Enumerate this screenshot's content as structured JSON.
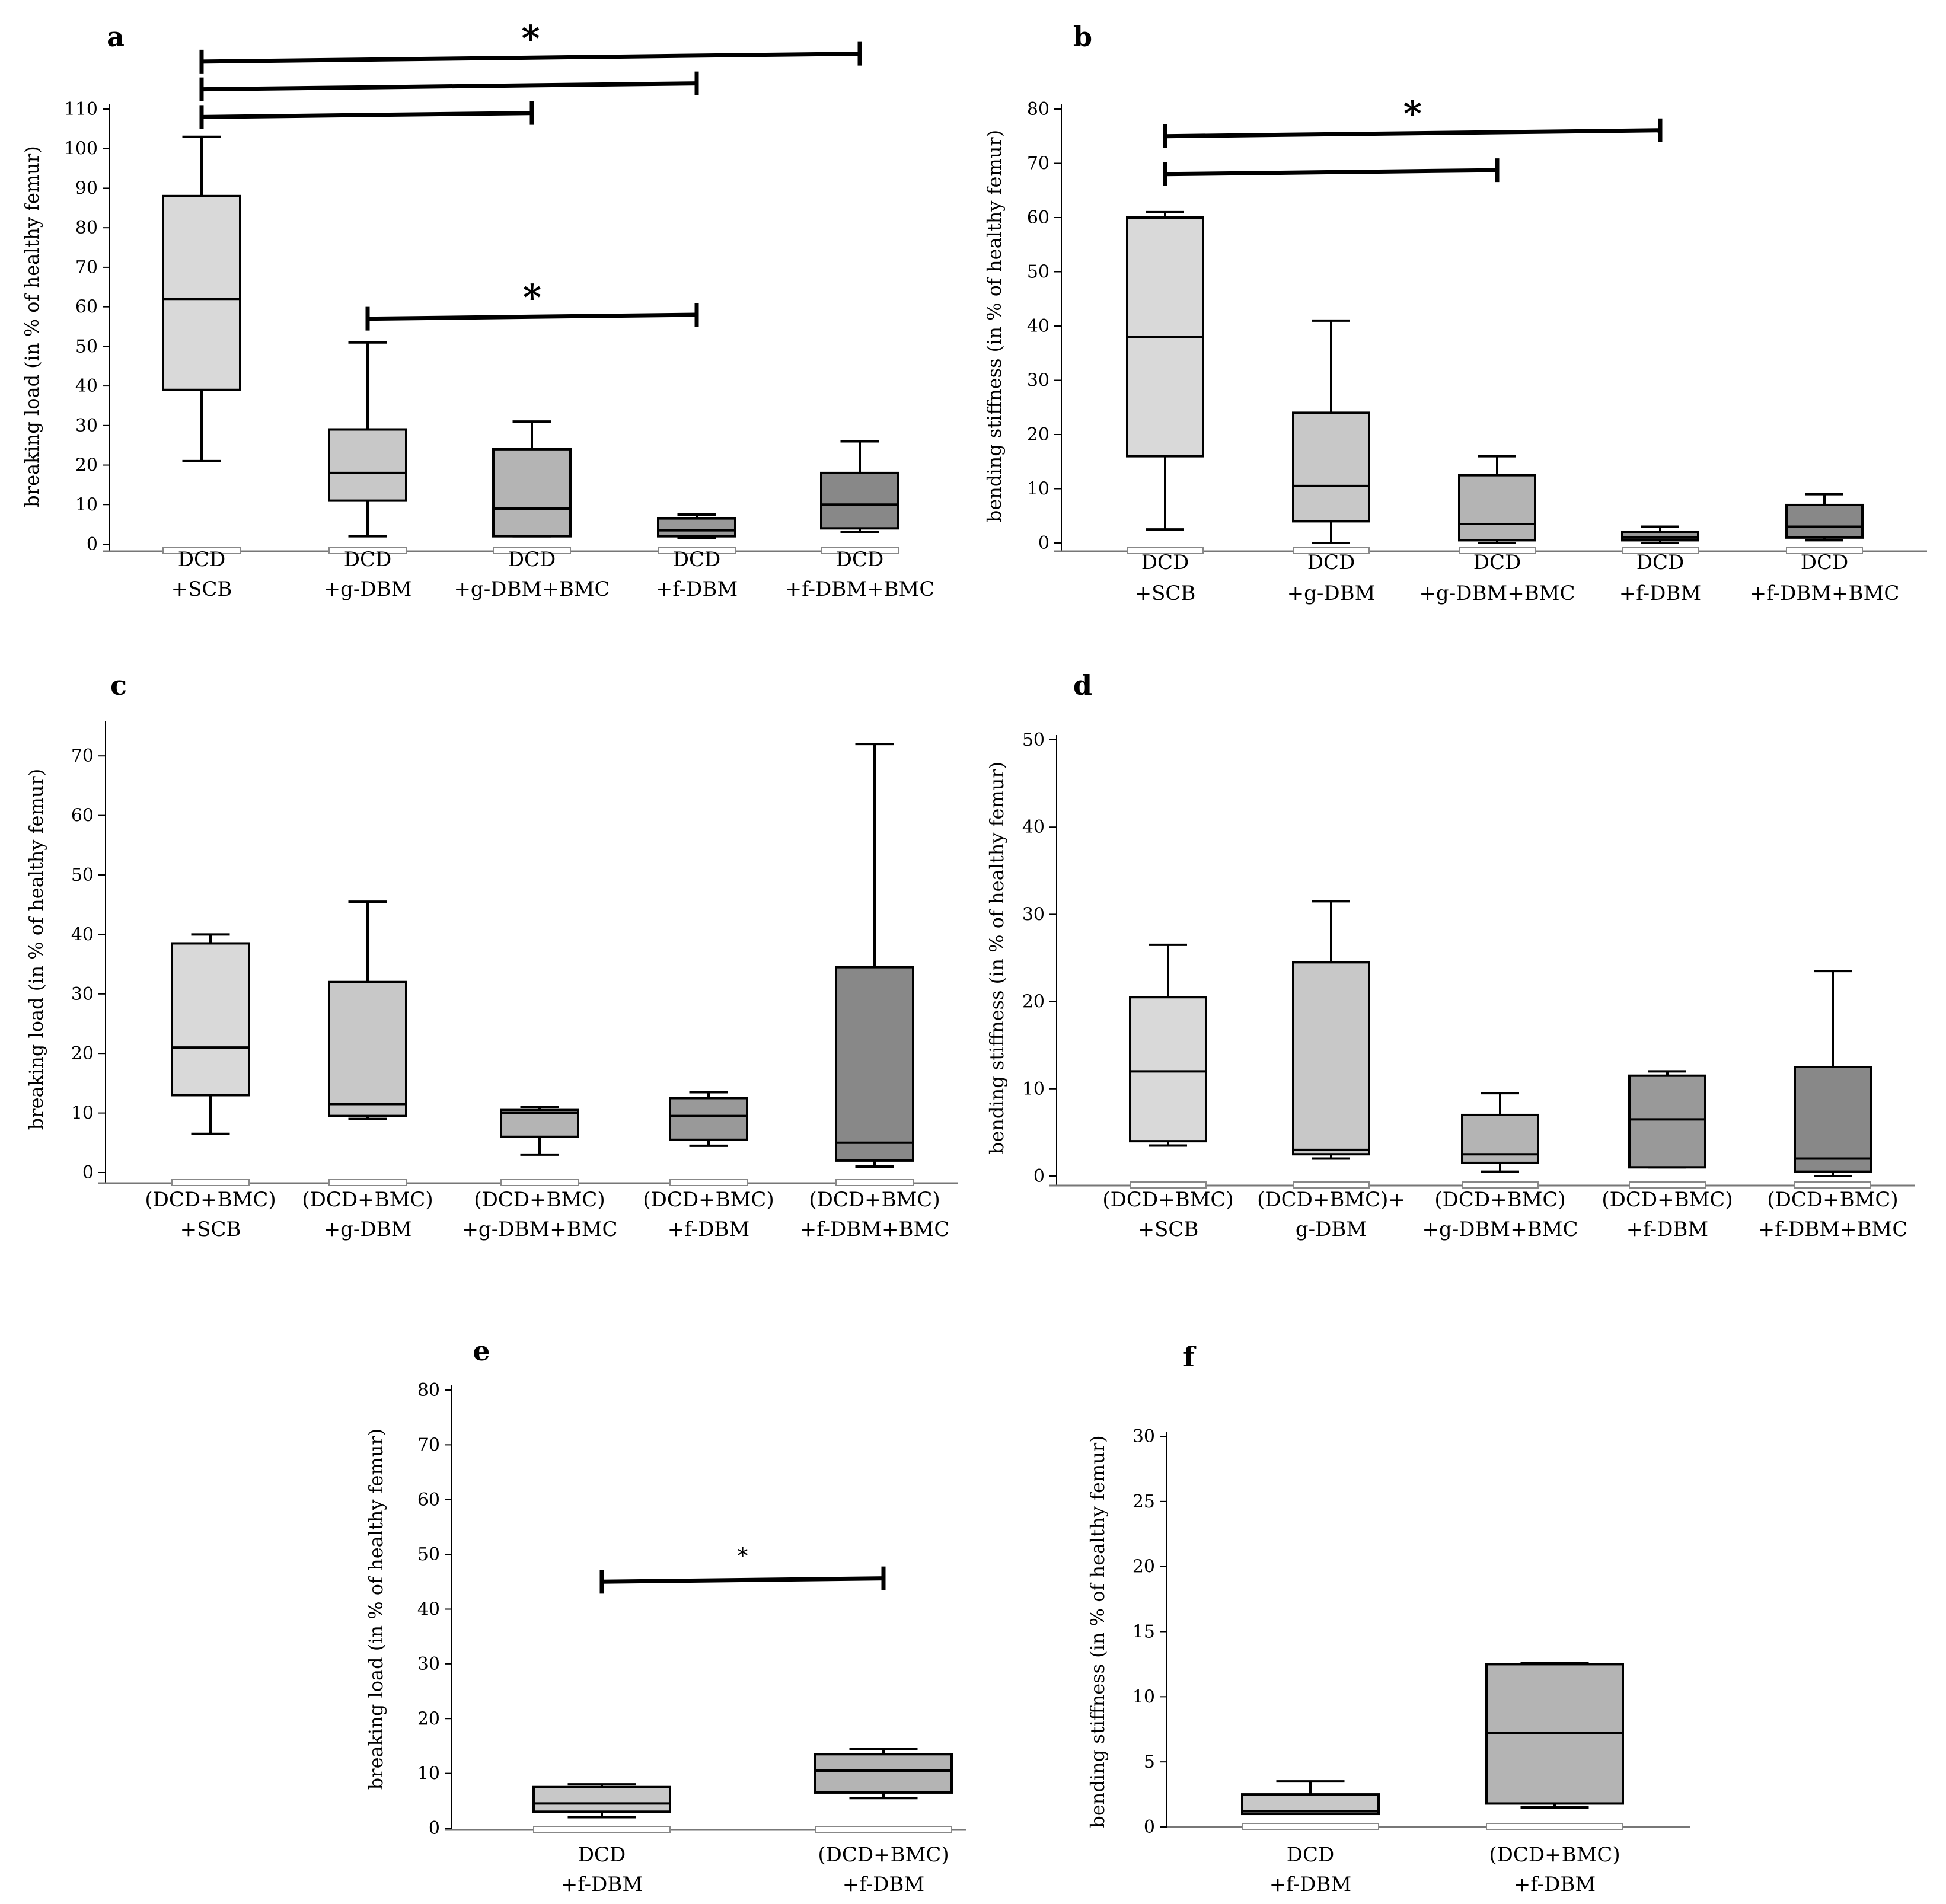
{
  "chart_data": [
    {
      "panel": "a",
      "type": "box",
      "ylabel": "breaking load (in % of healthy femur)",
      "ylim": [
        0,
        110
      ],
      "yticks": [
        0,
        10,
        20,
        30,
        40,
        50,
        60,
        70,
        80,
        90,
        100,
        110
      ],
      "categories": [
        [
          "DCD",
          "+SCB"
        ],
        [
          "DCD",
          "+g-DBM"
        ],
        [
          "DCD",
          "+g-DBM+BMC"
        ],
        [
          "DCD",
          "+f-DBM"
        ],
        [
          "DCD",
          "+f-DBM+BMC"
        ]
      ],
      "boxes": [
        {
          "min": 21,
          "q1": 39,
          "median": 62,
          "q3": 88,
          "max": 103,
          "color": "#d9d9d9"
        },
        {
          "min": 2,
          "q1": 11,
          "median": 18,
          "q3": 29,
          "max": 51,
          "color": "#c8c8c8"
        },
        {
          "min": 2,
          "q1": 2,
          "median": 9,
          "q3": 24,
          "max": 31,
          "color": "#b4b4b4"
        },
        {
          "min": 1.5,
          "q1": 2,
          "median": 3.5,
          "q3": 6.5,
          "max": 7.5,
          "color": "#999999"
        },
        {
          "min": 3,
          "q1": 4,
          "median": 10,
          "q3": 18,
          "max": 26,
          "color": "#888888"
        }
      ],
      "significance": [
        {
          "from": 0,
          "to": 4,
          "y": 122,
          "label": "*"
        },
        {
          "from": 0,
          "to": 3,
          "y": 115,
          "label": ""
        },
        {
          "from": 0,
          "to": 2,
          "y": 108,
          "label": ""
        },
        {
          "from": 1,
          "to": 3,
          "y": 57,
          "label": "*"
        }
      ]
    },
    {
      "panel": "b",
      "type": "box",
      "ylabel": "bending stiffness (in % of healthy femur)",
      "ylim": [
        0,
        80
      ],
      "yticks": [
        0,
        10,
        20,
        30,
        40,
        50,
        60,
        70,
        80
      ],
      "categories": [
        [
          "DCD",
          "+SCB"
        ],
        [
          "DCD",
          "+g-DBM"
        ],
        [
          "DCD",
          "+g-DBM+BMC"
        ],
        [
          "DCD",
          "+f-DBM"
        ],
        [
          "DCD",
          "+f-DBM+BMC"
        ]
      ],
      "boxes": [
        {
          "min": 2.5,
          "q1": 16,
          "median": 38,
          "q3": 60,
          "max": 61,
          "color": "#d9d9d9"
        },
        {
          "min": 0,
          "q1": 4,
          "median": 10.5,
          "q3": 24,
          "max": 41,
          "color": "#c8c8c8"
        },
        {
          "min": 0,
          "q1": 0.5,
          "median": 3.5,
          "q3": 12.5,
          "max": 16,
          "color": "#b4b4b4"
        },
        {
          "min": 0,
          "q1": 0.5,
          "median": 1,
          "q3": 2,
          "max": 3,
          "color": "#999999"
        },
        {
          "min": 0.5,
          "q1": 1,
          "median": 3,
          "q3": 7,
          "max": 9,
          "color": "#888888"
        }
      ],
      "significance": [
        {
          "from": 0,
          "to": 3,
          "y": 75,
          "label": "*"
        },
        {
          "from": 0,
          "to": 2,
          "y": 68,
          "label": ""
        }
      ]
    },
    {
      "panel": "c",
      "type": "box",
      "ylabel": "breaking load (in % of healthy femur)",
      "ylim": [
        0,
        75
      ],
      "yticks": [
        0,
        10,
        20,
        30,
        40,
        50,
        60,
        70
      ],
      "categories": [
        [
          "(DCD+BMC)",
          "+SCB"
        ],
        [
          "(DCD+BMC)",
          "+g-DBM"
        ],
        [
          "(DCD+BMC)",
          "+g-DBM+BMC"
        ],
        [
          "(DCD+BMC)",
          "+f-DBM"
        ],
        [
          "(DCD+BMC)",
          "+f-DBM+BMC"
        ]
      ],
      "boxes": [
        {
          "min": 6.5,
          "q1": 13,
          "median": 21,
          "q3": 38.5,
          "max": 40,
          "color": "#d9d9d9"
        },
        {
          "min": 9,
          "q1": 9.5,
          "median": 11.5,
          "q3": 32,
          "max": 45.5,
          "color": "#c8c8c8"
        },
        {
          "min": 3,
          "q1": 6,
          "median": 10,
          "q3": 10.5,
          "max": 11,
          "color": "#b4b4b4"
        },
        {
          "min": 4.5,
          "q1": 5.5,
          "median": 9.5,
          "q3": 12.5,
          "max": 13.5,
          "color": "#999999"
        },
        {
          "min": 1,
          "q1": 2,
          "median": 5,
          "q3": 34.5,
          "max": 72,
          "color": "#888888"
        }
      ],
      "significance": []
    },
    {
      "panel": "d",
      "type": "box",
      "ylabel": "bending stiffness (in % of healthy femur)",
      "ylim": [
        0,
        50
      ],
      "yticks": [
        0,
        10,
        20,
        30,
        40,
        50
      ],
      "categories": [
        [
          "(DCD+BMC)",
          "+SCB"
        ],
        [
          "(DCD+BMC)+",
          "g-DBM"
        ],
        [
          "(DCD+BMC)",
          "+g-DBM+BMC"
        ],
        [
          "(DCD+BMC)",
          "+f-DBM"
        ],
        [
          "(DCD+BMC)",
          "+f-DBM+BMC"
        ]
      ],
      "boxes": [
        {
          "min": 3.5,
          "q1": 4,
          "median": 12,
          "q3": 20.5,
          "max": 26.5,
          "color": "#d9d9d9"
        },
        {
          "min": 2,
          "q1": 2.5,
          "median": 3,
          "q3": 24.5,
          "max": 31.5,
          "color": "#c8c8c8"
        },
        {
          "min": 0.5,
          "q1": 1.5,
          "median": 2.5,
          "q3": 7,
          "max": 9.5,
          "color": "#b4b4b4"
        },
        {
          "min": 1,
          "q1": 1,
          "median": 6.5,
          "q3": 11.5,
          "max": 12,
          "color": "#999999"
        },
        {
          "min": 0,
          "q1": 0.5,
          "median": 2,
          "q3": 12.5,
          "max": 23.5,
          "color": "#888888"
        }
      ],
      "significance": []
    },
    {
      "panel": "e",
      "type": "box",
      "ylabel": "breaking load (in % of healthy femur)",
      "ylim": [
        0,
        80
      ],
      "yticks": [
        0,
        10,
        20,
        30,
        40,
        50,
        60,
        70,
        80
      ],
      "categories": [
        [
          "DCD",
          "+f-DBM"
        ],
        [
          "(DCD+BMC)",
          "+f-DBM"
        ]
      ],
      "boxes": [
        {
          "min": 2,
          "q1": 3,
          "median": 4.5,
          "q3": 7.5,
          "max": 8,
          "color": "#c8c8c8"
        },
        {
          "min": 5.5,
          "q1": 6.5,
          "median": 10.5,
          "q3": 13.5,
          "max": 14.5,
          "color": "#b4b4b4"
        }
      ],
      "significance": [
        {
          "from": 0,
          "to": 1,
          "y": 45,
          "label": "*"
        }
      ]
    },
    {
      "panel": "f",
      "type": "box",
      "ylabel": "bending stiffness (in % of healthy femur)",
      "ylim": [
        0,
        30
      ],
      "yticks": [
        0,
        5,
        10,
        15,
        20,
        25,
        30
      ],
      "categories": [
        [
          "DCD",
          "+f-DBM"
        ],
        [
          "(DCD+BMC)",
          "+f-DBM"
        ]
      ],
      "boxes": [
        {
          "min": 1,
          "q1": 1,
          "median": 1.2,
          "q3": 2.5,
          "max": 3.5,
          "color": "#c8c8c8"
        },
        {
          "min": 1.5,
          "q1": 1.8,
          "median": 7.2,
          "q3": 12.5,
          "max": 12.6,
          "color": "#b4b4b4"
        }
      ],
      "significance": []
    }
  ]
}
